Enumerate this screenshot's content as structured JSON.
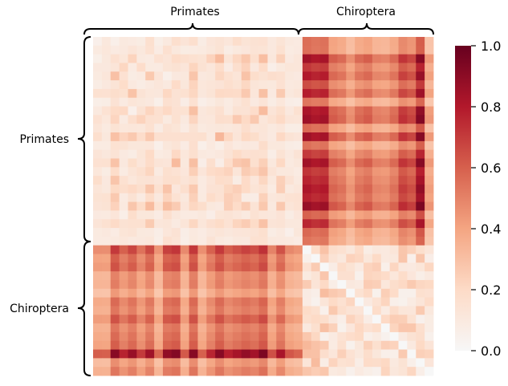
{
  "chart_data": {
    "type": "heatmap",
    "groups": [
      {
        "name": "Primates",
        "size": 24
      },
      {
        "name": "Chiroptera",
        "size": 15
      }
    ],
    "rows": 39,
    "cols": 39,
    "colorbar": {
      "min": 0.0,
      "max": 1.0,
      "ticks": [
        "0.0",
        "0.2",
        "0.4",
        "0.6",
        "0.8",
        "1.0"
      ],
      "colormap": [
        "#f7f7f7",
        "#fddbc7",
        "#f4a582",
        "#d6604d",
        "#b2182b",
        "#67001f"
      ]
    },
    "block_means": {
      "primates_primates": 0.18,
      "primates_chiroptera": 0.55,
      "chiroptera_primates": 0.55,
      "chiroptera_chiroptera": 0.2
    },
    "col_factors_chiroptera": [
      0.9,
      0.85,
      0.88,
      0.55,
      0.5,
      0.35,
      0.5,
      0.55,
      0.42,
      0.4,
      0.5,
      0.72,
      0.65,
      1.0,
      0.3
    ],
    "row_factors_chiroptera": [
      0.7,
      0.55,
      0.6,
      0.4,
      0.42,
      0.3,
      0.5,
      0.45,
      0.6,
      0.45,
      0.5,
      0.55,
      1.0,
      0.35,
      0.45
    ],
    "grid": false,
    "legend": "colorbar-right"
  },
  "labels": {
    "top": [
      "Primates",
      "Chiroptera"
    ],
    "left": [
      "Primates",
      "Chiroptera"
    ]
  }
}
